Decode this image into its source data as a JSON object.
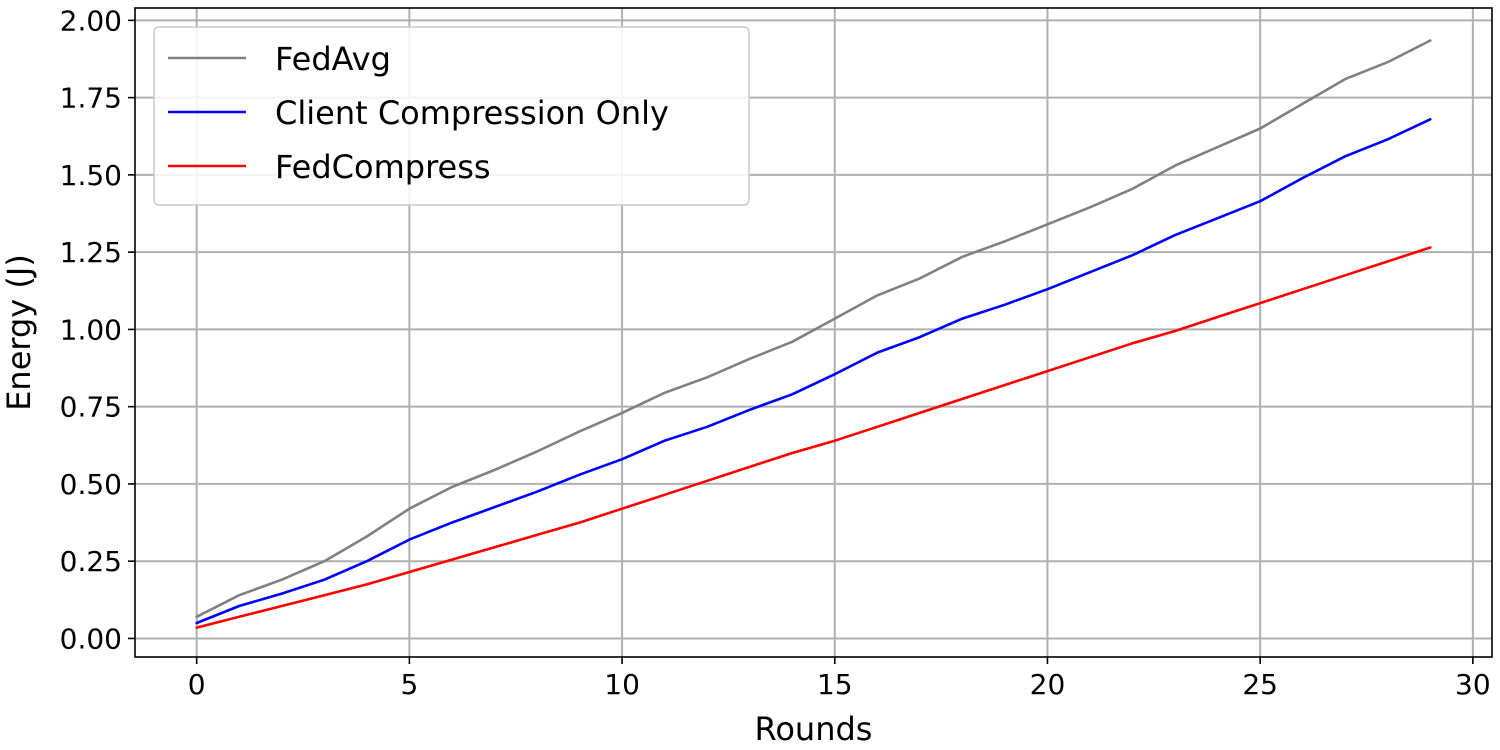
{
  "chart_data": {
    "type": "line",
    "title": "",
    "xlabel": "Rounds",
    "ylabel": "Energy (J)",
    "xlim": [
      -1.45,
      30.45
    ],
    "ylim": [
      -0.06,
      2.04
    ],
    "xticks": [
      0,
      5,
      10,
      15,
      20,
      25,
      30
    ],
    "xtick_labels": [
      "0",
      "5",
      "10",
      "15",
      "20",
      "25",
      "30"
    ],
    "yticks": [
      0,
      0.25,
      0.5,
      0.75,
      1.0,
      1.25,
      1.5,
      1.75,
      2.0
    ],
    "ytick_labels": [
      "0.00",
      "0.25",
      "0.50",
      "0.75",
      "1.00",
      "1.25",
      "1.50",
      "1.75",
      "2.00"
    ],
    "grid": true,
    "legend_position": "top-left",
    "x": [
      0,
      1,
      2,
      3,
      4,
      5,
      6,
      7,
      8,
      9,
      10,
      11,
      12,
      13,
      14,
      15,
      16,
      17,
      18,
      19,
      20,
      21,
      22,
      23,
      24,
      25,
      26,
      27,
      28,
      29
    ],
    "series": [
      {
        "name": "FedAvg",
        "color": "#808080",
        "values": [
          0.07,
          0.14,
          0.19,
          0.25,
          0.33,
          0.42,
          0.49,
          0.545,
          0.605,
          0.67,
          0.73,
          0.795,
          0.845,
          0.905,
          0.96,
          1.035,
          1.11,
          1.165,
          1.235,
          1.285,
          1.34,
          1.395,
          1.455,
          1.53,
          1.59,
          1.65,
          1.73,
          1.81,
          1.865,
          1.935
        ]
      },
      {
        "name": "Client Compression Only",
        "color": "#0000ff",
        "values": [
          0.05,
          0.105,
          0.145,
          0.19,
          0.25,
          0.32,
          0.375,
          0.425,
          0.475,
          0.53,
          0.58,
          0.64,
          0.685,
          0.74,
          0.79,
          0.855,
          0.925,
          0.975,
          1.035,
          1.08,
          1.13,
          1.185,
          1.24,
          1.305,
          1.36,
          1.415,
          1.49,
          1.56,
          1.615,
          1.68
        ]
      },
      {
        "name": "FedCompress",
        "color": "#ff0000",
        "values": [
          0.035,
          0.07,
          0.105,
          0.14,
          0.175,
          0.215,
          0.255,
          0.295,
          0.335,
          0.375,
          0.42,
          0.465,
          0.51,
          0.555,
          0.6,
          0.64,
          0.685,
          0.73,
          0.775,
          0.82,
          0.865,
          0.91,
          0.955,
          0.995,
          1.04,
          1.085,
          1.13,
          1.175,
          1.22,
          1.265
        ]
      }
    ]
  }
}
